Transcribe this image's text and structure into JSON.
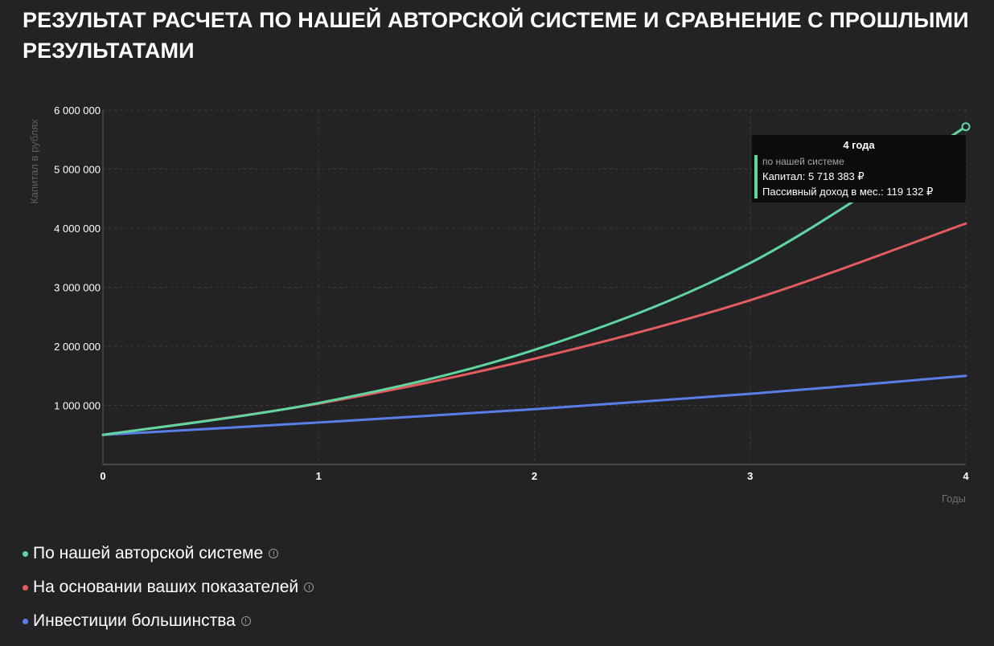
{
  "page": {
    "title": "РЕЗУЛЬТАТ РАСЧЕТА ПО НАШЕЙ АВТОРСКОЙ СИСТЕМЕ И СРАВНЕНИЕ С ПРОШЛЫМИ РЕЗУЛЬТАТАМИ"
  },
  "chart_data": {
    "type": "line",
    "title": "",
    "xlabel": "Годы",
    "ylabel": "Капитал в рублях",
    "x": [
      0,
      1,
      2,
      3,
      4
    ],
    "xlim": [
      0,
      4
    ],
    "ylim": [
      0,
      6000000
    ],
    "x_ticks": [
      "0",
      "1",
      "2",
      "3",
      "4"
    ],
    "y_tick_values": [
      1000000,
      2000000,
      3000000,
      4000000,
      5000000,
      6000000
    ],
    "y_ticks": [
      "1 000 000",
      "2 000 000",
      "3 000 000",
      "4 000 000",
      "5 000 000",
      "6 000 000"
    ],
    "grid": true,
    "legend_position": "bottom-left",
    "series": [
      {
        "name": "По нашей авторской системе",
        "color": "#5fd6a0",
        "values": [
          500000,
          1040000,
          1940000,
          3410000,
          5718383
        ]
      },
      {
        "name": "На основании ваших показателей",
        "color": "#e45c5f",
        "values": [
          500000,
          1030000,
          1790000,
          2780000,
          4080000
        ]
      },
      {
        "name": "Инвестиции большинства",
        "color": "#5a7ee8",
        "values": [
          500000,
          710000,
          935000,
          1195000,
          1500000
        ]
      }
    ],
    "tooltip": {
      "title": "4 года",
      "series": "по нашей системе",
      "capital": "Капитал: 5 718 383 ₽",
      "income": "Пассивный доход в мес.: 119 132 ₽"
    }
  }
}
